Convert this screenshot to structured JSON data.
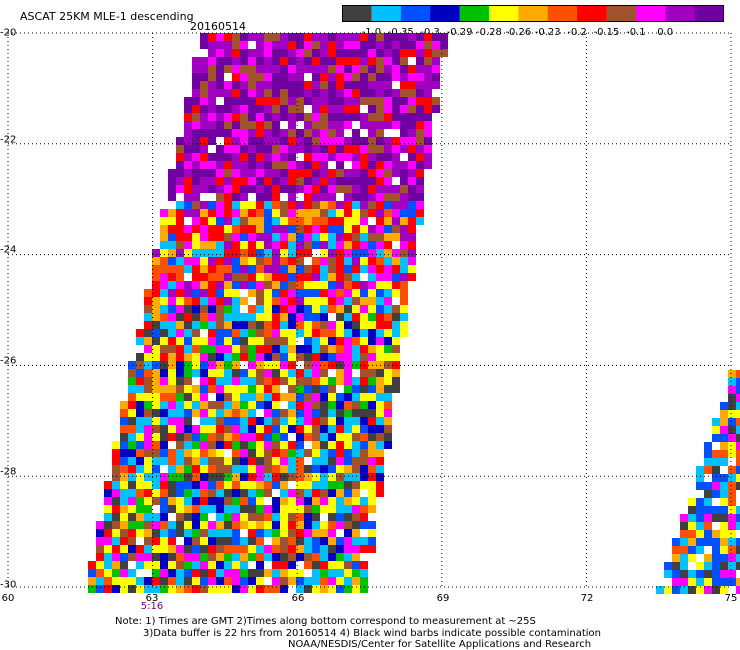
{
  "title": "ASCAT 25KM MLE-1 descending",
  "date": "20160514",
  "legend": {
    "labels": [
      "-1.0",
      "-0.35",
      "-0.3",
      "-0.29",
      "-0.28",
      "-0.26",
      "-0.23",
      "-0.2",
      "-0.15",
      "-0.1",
      "0.0"
    ],
    "colors": [
      "#404040",
      "#00c0ff",
      "#0050ff",
      "#0000c0",
      "#00c000",
      "#ffff00",
      "#ffaa00",
      "#ff5000",
      "#ff0000",
      "#a0522d",
      "#ff00ff",
      "#a000c0",
      "#7000a0"
    ]
  },
  "axes": {
    "lat_labels": [
      "-20",
      "-22",
      "-24",
      "-26",
      "-28",
      "-30"
    ],
    "lon_labels": [
      "60",
      "63",
      "66",
      "69",
      "72",
      "75"
    ],
    "lat_range": [
      -30,
      -20
    ],
    "lon_range": [
      60,
      75
    ]
  },
  "time_label": "5:16",
  "notes": {
    "line1": "Note: 1) Times are GMT 2)Times along bottom correspond to measurement at ~25S",
    "line2": "3)Data buffer is 22 hrs from 20160514 4) Black wind barbs indicate possible contamination",
    "line3": "NOAA/NESDIS/Center for Satellite Applications and Research"
  }
}
